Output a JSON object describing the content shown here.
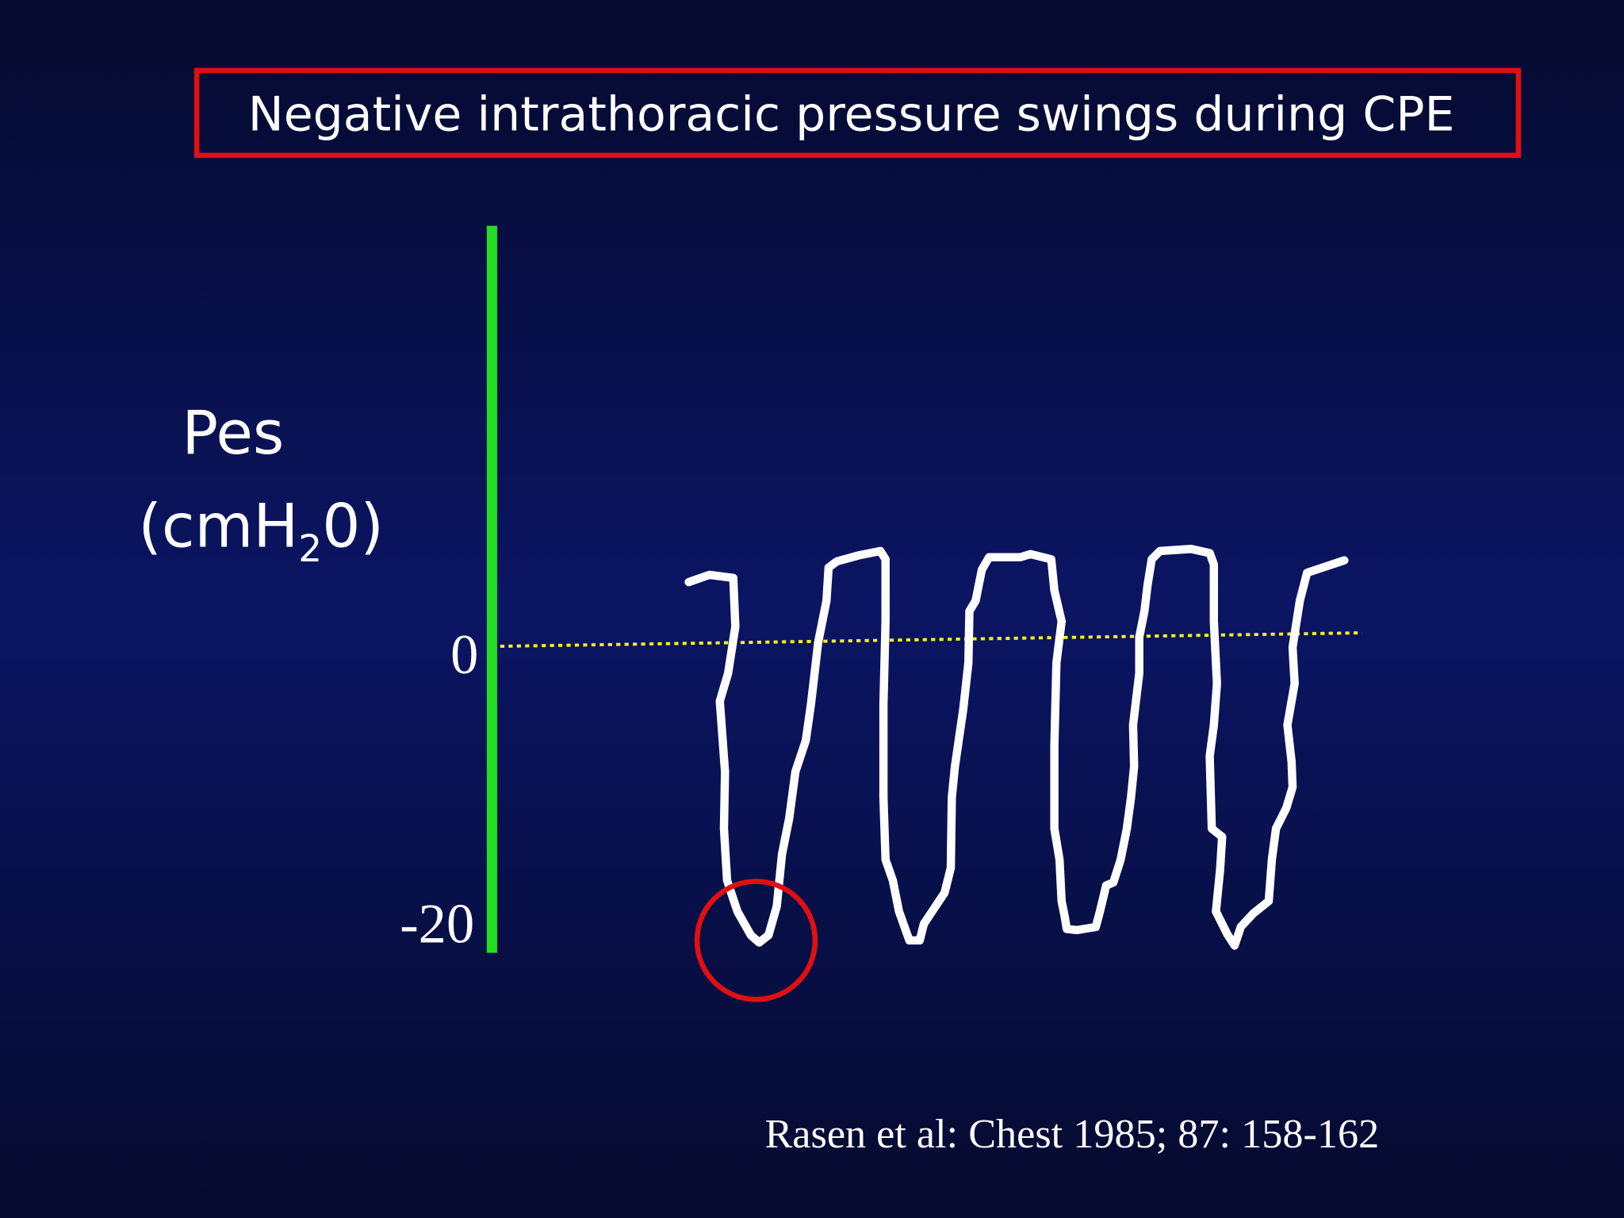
{
  "title": "Negative intrathoracic pressure swings during CPE",
  "y_label": {
    "name": "Pes",
    "unit_before": "(cmH",
    "unit_subscript": "2",
    "unit_after": "0)"
  },
  "tick_labels": [
    "0",
    "-20"
  ],
  "citation": "Rasen et al:  Chest 1985;  87:  158-162"
}
